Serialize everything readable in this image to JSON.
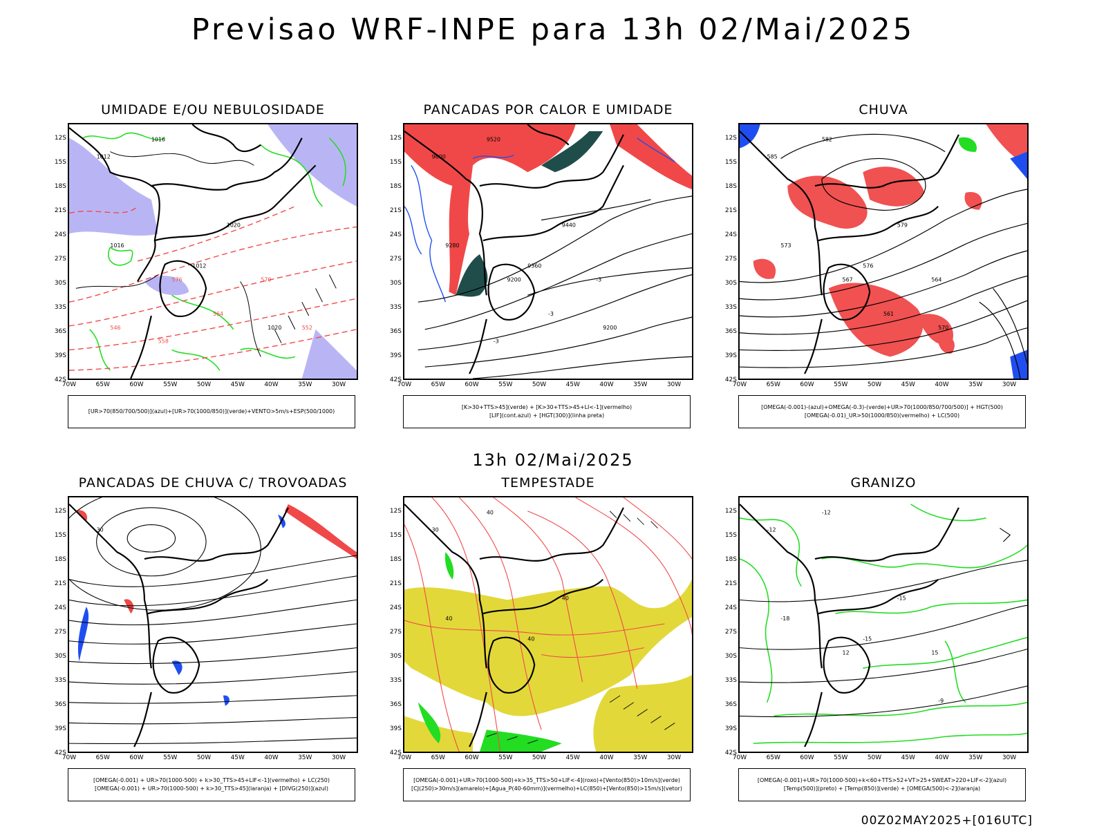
{
  "header": {
    "title": "Previsao WRF-INPE  para 13h 02/Mai/2025"
  },
  "mid_time": "13h 02/Mai/2025",
  "footer_stamp": "00Z02MAY2025+[016UTC]",
  "axes": {
    "lat_labels": [
      "12S",
      "15S",
      "18S",
      "21S",
      "24S",
      "27S",
      "30S",
      "33S",
      "36S",
      "39S",
      "42S"
    ],
    "lon_labels": [
      "70W",
      "65W",
      "60W",
      "55W",
      "50W",
      "45W",
      "40W",
      "35W",
      "30W"
    ]
  },
  "colors": {
    "red": "#f04848",
    "green": "#22dd22",
    "blue": "#1f4ef0",
    "lavender": "#a7a2f2",
    "teal": "#1f4d4a",
    "yellow": "#e2d83a",
    "black": "#000000"
  },
  "panels": [
    {
      "id": "umidade",
      "title": "UMIDADE E/OU NEBULOSIDADE",
      "legend": [
        "[UR>70(850/700/500)](azul)+[UR>70(1000/850)](verde)+VENTO>5m/s+ESP(500/1000)"
      ],
      "contour_labels": [
        "1012",
        "1016",
        "1020",
        "1012",
        "1016",
        "1020",
        "576",
        "570",
        "564",
        "558",
        "552",
        "546"
      ]
    },
    {
      "id": "pancadas-calor",
      "title": "PANCADAS POR CALOR E UMIDADE",
      "legend": [
        "[K>30+TTS>45](verde) + [K>30+TTS>45+LI<-1](vermelho)",
        "[LIF](cont.azul) + [HGT(300)](linha preta)"
      ],
      "contour_labels": [
        "9600",
        "9520",
        "9440",
        "9360",
        "9280",
        "9200",
        "9200",
        "-3",
        "-3",
        "-3"
      ]
    },
    {
      "id": "chuva",
      "title": "CHUVA",
      "legend": [
        "[OMEGA(-0.001)-(azul)+OMEGA(-0.3)-(verde)+UR>70(1000/850/700/500)] + HGT(500)",
        "[OMEGA(-0.01)_UR>50(1000/850)(vermelho) + LC(500)"
      ],
      "contour_labels": [
        "585",
        "582",
        "579",
        "576",
        "573",
        "570",
        "567",
        "564",
        "561"
      ]
    },
    {
      "id": "pancadas-trovoadas",
      "title": "PANCADAS DE CHUVA C/ TROVOADAS",
      "legend": [
        "[OMEGA(-0.001) + UR>70(1000-500) + k>30_TTS>45+LIF<-1](vermelho) + LC(250)",
        "[OMEGA(-0.001) + UR>70(1000-500) + k>30_TTS>45](laranja) + [DIVG(250)](azul)"
      ],
      "contour_labels": [
        "30"
      ]
    },
    {
      "id": "tempestade",
      "title": "TEMPESTADE",
      "legend": [
        "[OMEGA(-0.001)+UR>70(1000-500)+k>35_TTS>50+LIF<-4](roxo)+[Vento(850)>10m/s](verde)",
        "[CJ(250)>30m/s](amarelo)+[Agua_P(40-60mm)](vermelho)+LC(850)+[Vento(850)>15m/s](vetor)"
      ],
      "contour_labels": [
        "30",
        "40",
        "40",
        "40",
        "40"
      ]
    },
    {
      "id": "granizo",
      "title": "GRANIZO",
      "legend": [
        "[OMEGA(-0.001)+UR>70(1000-500)+k<60+TTS>52+VT>25+SWEAT>220+LIF<-2](azul)",
        "[Temp(500)](preto) + [Temp(850)](verde) + [OMEGA(500)<-2](laranja)"
      ],
      "contour_labels": [
        "-12",
        "-12",
        "-15",
        "-15",
        "-18",
        "-9",
        "12",
        "15"
      ]
    }
  ]
}
